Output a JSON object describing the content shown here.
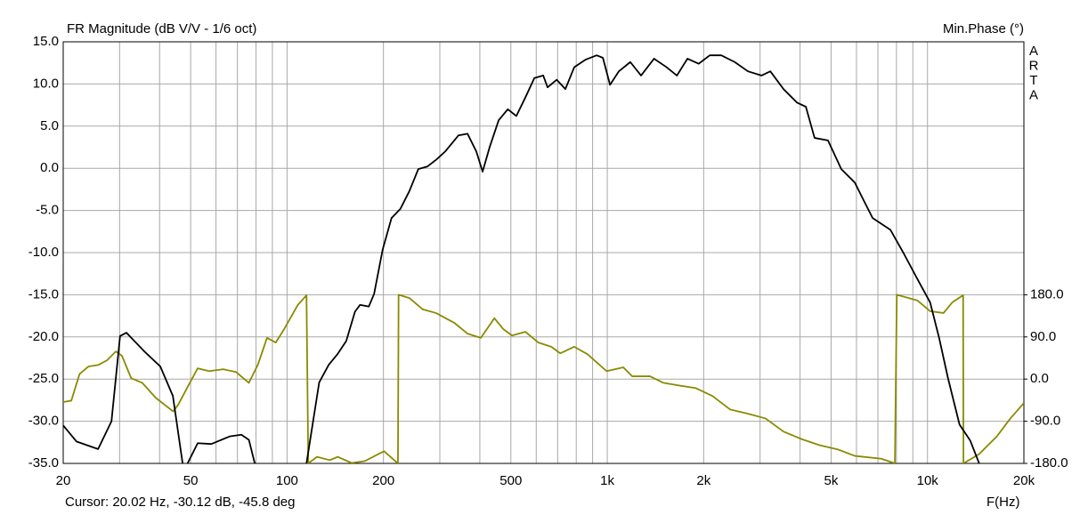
{
  "chart_data": {
    "type": "line",
    "title": "FR Magnitude (dB V/V - 1/6 oct)",
    "y2_label": "Min.Phase (°)",
    "side_label": [
      "A",
      "R",
      "T",
      "A"
    ],
    "x_label": "F(Hz)",
    "cursor_text": "Cursor: 20.02 Hz, -30.12 dB, -45.8 deg",
    "x_scale": "log",
    "grid": true,
    "xlim": [
      20,
      20000
    ],
    "xticks": [
      20,
      50,
      100,
      200,
      500,
      {
        "value": 1000,
        "label": "1k"
      },
      {
        "value": 2000,
        "label": "2k"
      },
      {
        "value": 5000,
        "label": "5k"
      },
      {
        "value": 10000,
        "label": "10k"
      },
      {
        "value": 20000,
        "label": "20k"
      }
    ],
    "xminorticks": [
      30,
      40,
      60,
      70,
      80,
      90,
      300,
      400,
      600,
      700,
      800,
      900,
      3000,
      4000,
      6000,
      7000,
      8000,
      9000
    ],
    "ylim": [
      -35,
      15
    ],
    "yticks": [
      {
        "value": 15,
        "label": "15.0"
      },
      {
        "value": 10,
        "label": "10.0"
      },
      {
        "value": 5,
        "label": "5.0"
      },
      {
        "value": 0,
        "label": "0.0"
      },
      {
        "value": -5,
        "label": "-5.0"
      },
      {
        "value": -10,
        "label": "-10.0"
      },
      {
        "value": -15,
        "label": "-15.0"
      },
      {
        "value": -20,
        "label": "-20.0"
      },
      {
        "value": -25,
        "label": "-25.0"
      },
      {
        "value": -30,
        "label": "-30.0"
      },
      {
        "value": -35,
        "label": "-35.0"
      }
    ],
    "y2lim": [
      -180,
      720
    ],
    "y2ticks": [
      {
        "value": 180,
        "label": "180.0"
      },
      {
        "value": 90,
        "label": "90.0"
      },
      {
        "value": 0,
        "label": "0.0"
      },
      {
        "value": -90,
        "label": "-90.0"
      },
      {
        "value": -180,
        "label": "-180.0"
      }
    ],
    "series": [
      {
        "name": "FR Magnitude",
        "color": "#000000",
        "x": [
          20,
          22,
          25.7,
          28.3,
          30.1,
          31.5,
          35.8,
          40.2,
          44,
          47.2,
          48,
          48.9,
          52.6,
          58,
          66.2,
          72,
          76,
          79.3,
          100,
          115,
          126,
          135,
          144,
          153,
          163,
          169,
          180,
          187,
          199,
          212,
          226,
          241,
          257,
          274,
          292,
          312,
          343,
          366,
          390,
          408,
          430,
          458,
          489,
          520,
          555,
          592,
          631,
          651,
          695,
          740,
          789,
          857,
          927,
          969,
          1020,
          1087,
          1180,
          1275,
          1400,
          1530,
          1650,
          1780,
          1930,
          2090,
          2270,
          2500,
          2750,
          3030,
          3230,
          3550,
          3910,
          4170,
          4440,
          4890,
          5380,
          5930,
          6320,
          6740,
          7660,
          8430,
          9290,
          10190,
          10870,
          11590,
          12590,
          13600,
          14500
        ],
        "values": [
          -30.5,
          -32.4,
          -33.3,
          -30,
          -19.9,
          -19.5,
          -21.7,
          -23.5,
          -27,
          -35,
          null,
          -35,
          -32.6,
          -32.7,
          -31.8,
          -31.6,
          -32.2,
          -35,
          null,
          -35,
          -25.4,
          -23.3,
          -22,
          -20.5,
          -17,
          -16.2,
          -16.4,
          -14.9,
          -9.6,
          -5.9,
          -4.8,
          -2.7,
          -0.1,
          0.2,
          1,
          2,
          3.9,
          4.1,
          2,
          -0.4,
          2.6,
          5.7,
          7,
          6.2,
          8.4,
          10.7,
          11,
          9.6,
          10.5,
          9.4,
          12,
          12.9,
          13.4,
          13.1,
          9.9,
          11.5,
          12.6,
          11,
          13,
          12,
          11,
          13,
          12.4,
          13.4,
          13.4,
          12.6,
          11.5,
          11,
          11.5,
          9.4,
          7.8,
          7.3,
          3.6,
          3.3,
          -0.1,
          -1.7,
          -3.8,
          -5.9,
          -7.3,
          -10.1,
          -13.1,
          -15.9,
          -20.1,
          -24.9,
          -30.4,
          -32.3,
          -35
        ]
      },
      {
        "name": "Min.Phase",
        "color": "#8a8a00",
        "axis": "y2",
        "x": [
          20,
          21.2,
          22.5,
          24,
          25.7,
          27.4,
          29.2,
          30.5,
          32.6,
          35.3,
          38.9,
          44.1,
          45.7,
          48.9,
          52.6,
          57.1,
          63.2,
          69.3,
          76,
          81,
          86.6,
          92.2,
          98,
          108,
          115,
          116.5,
          124,
          136,
          144,
          159,
          175,
          193,
          201,
          212,
          222,
          223,
          241,
          265,
          292,
          333,
          366,
          403,
          444,
          473,
          504,
          555,
          609,
          669,
          713,
          789,
          868,
          995,
          1122,
          1196,
          1360,
          1497,
          1650,
          1885,
          2130,
          2420,
          2750,
          3120,
          3550,
          4040,
          4600,
          5240,
          5930,
          7180,
          7910,
          8020,
          9290,
          10190,
          11220,
          11960,
          12920,
          12950,
          14500,
          16480,
          18150,
          20000
        ],
        "values": [
          -49,
          -46,
          11,
          27,
          30,
          40,
          59,
          50,
          2,
          -8,
          -40,
          -69,
          -55,
          -17,
          23,
          17,
          21,
          15,
          -8,
          30,
          88,
          78,
          107,
          158,
          179,
          -180,
          -166,
          -173,
          -166,
          -179,
          -175,
          -160,
          -154,
          -168,
          -180,
          180,
          173,
          149,
          141,
          120,
          97,
          88,
          130,
          107,
          93,
          101,
          78,
          69,
          55,
          69,
          53,
          17,
          25,
          6,
          6,
          -8,
          -13,
          -19,
          -36,
          -65,
          -74,
          -84,
          -112,
          -128,
          -141,
          -150,
          -164,
          -170,
          -180,
          180,
          168,
          145,
          141,
          164,
          179,
          -180,
          -160,
          -122,
          -84,
          -51
        ]
      }
    ]
  }
}
